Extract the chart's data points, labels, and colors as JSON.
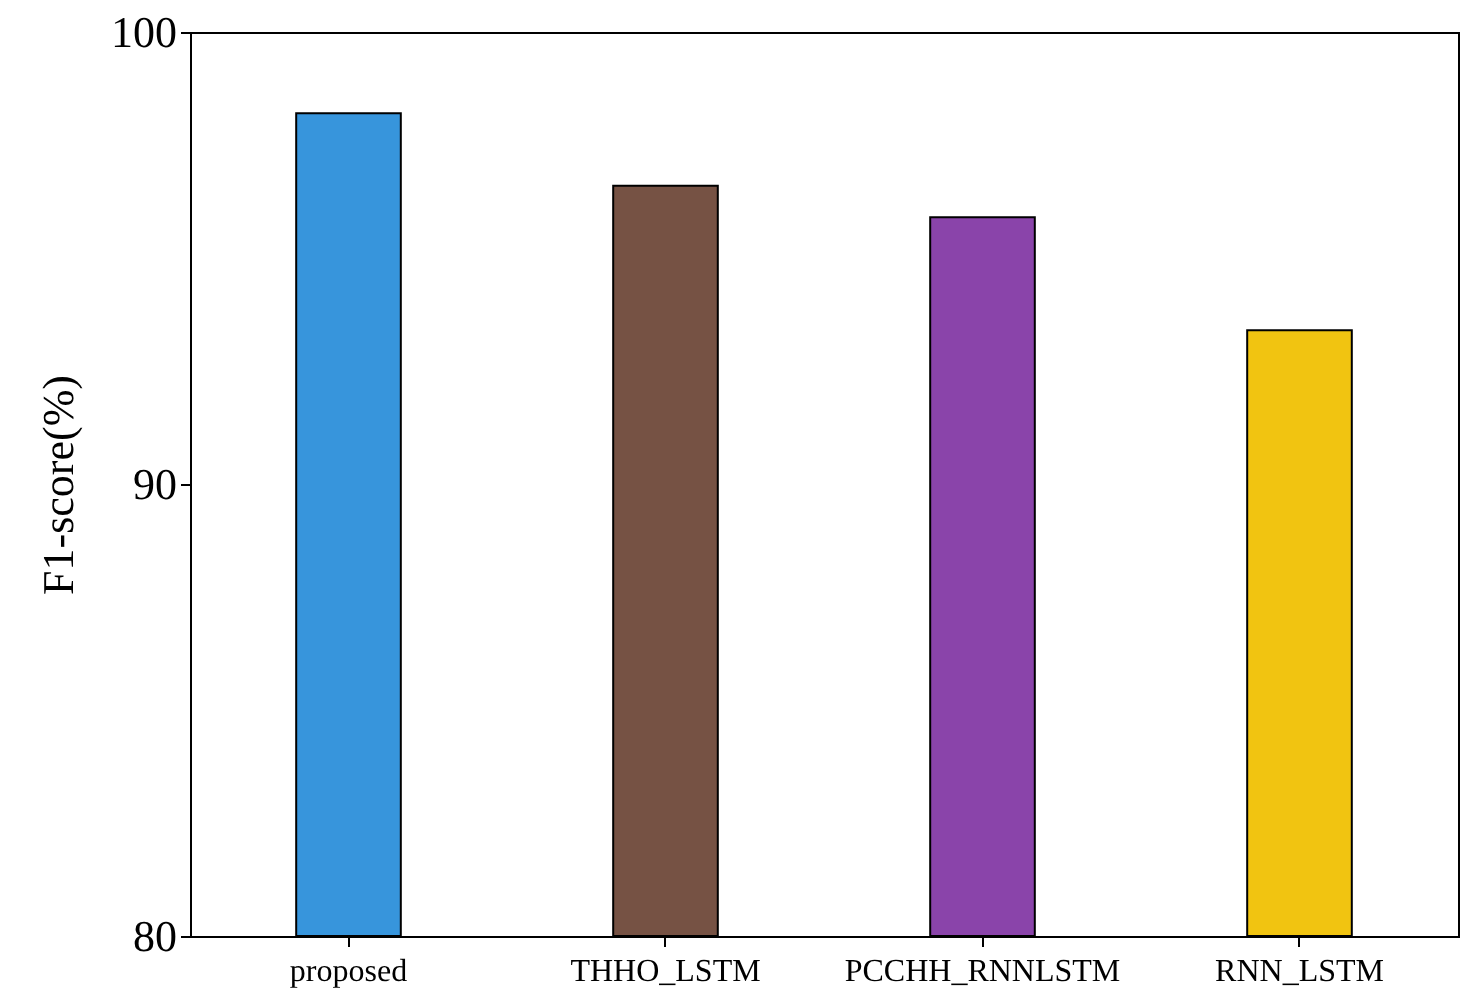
{
  "chart_data": {
    "type": "bar",
    "ylabel": "F1-score(%)",
    "categories": [
      "proposed",
      "THHO_LSTM",
      "PCCHH_RNNLSTM",
      "RNN_LSTM"
    ],
    "values": [
      98.2,
      96.6,
      95.9,
      93.4
    ],
    "colors": [
      "#3795dc",
      "#765244",
      "#8a44aa",
      "#f1c411"
    ],
    "ylim": [
      80,
      100
    ],
    "yticks": [
      80,
      90,
      100
    ],
    "grid": false
  }
}
